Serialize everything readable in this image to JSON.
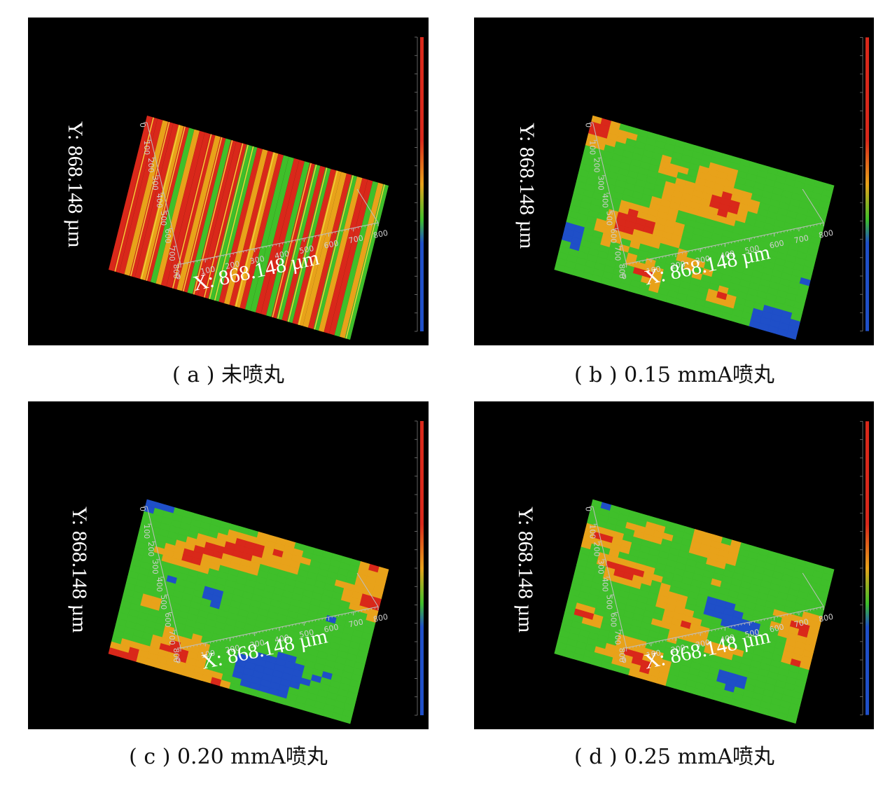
{
  "panels": [
    {
      "id": "a",
      "x_label": "X: 868.148 µm",
      "y_label": "Y: 868.148 µm",
      "caption": "( a ) 未喷丸",
      "surface": "ridges"
    },
    {
      "id": "b",
      "x_label": "X: 868.148 µm",
      "y_label": "Y: 868.148 µm",
      "caption": "( b ) 0.15 mmA喷丸",
      "surface": "pitted"
    },
    {
      "id": "c",
      "x_label": "X: 868.148 µm",
      "y_label": "Y: 868.148 µm",
      "caption": "( c ) 0.20 mmA喷丸",
      "surface": "pitted"
    },
    {
      "id": "d",
      "x_label": "X: 868.148 µm",
      "y_label": "Y: 868.148 µm",
      "caption": "( d ) 0.25 mmA喷丸",
      "surface": "pitted"
    }
  ],
  "x_ticks": [
    "0",
    "100",
    "200",
    "300",
    "400",
    "500",
    "600",
    "700",
    "800"
  ],
  "y_ticks": [
    "0",
    "100",
    "200",
    "300",
    "400",
    "500",
    "600",
    "700",
    "800"
  ],
  "colors": {
    "background": "#000000",
    "high": "#d9281a",
    "mid_high": "#e8a21a",
    "mid": "#3fbf2a",
    "low": "#1f4fc8",
    "axis": "#bfbfbf"
  }
}
